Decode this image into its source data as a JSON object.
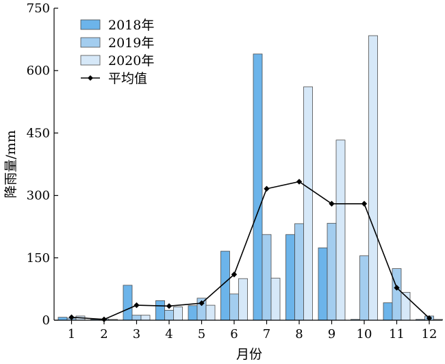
{
  "chart_data": {
    "type": "bar",
    "title": "",
    "xlabel": "月份",
    "ylabel": "降雨量/mm",
    "categories": [
      "1",
      "2",
      "3",
      "4",
      "5",
      "6",
      "7",
      "8",
      "9",
      "10",
      "11",
      "12"
    ],
    "ylim": [
      0,
      750
    ],
    "yticks": [
      "0",
      "150",
      "300",
      "450",
      "600",
      "750"
    ],
    "grid": false,
    "legend_position": "top-left",
    "series": [
      {
        "name": "2018年",
        "type": "bar",
        "color": "#6CB4EA",
        "values": [
          7,
          2,
          84,
          47,
          35,
          166,
          640,
          206,
          174,
          2,
          42,
          2
        ]
      },
      {
        "name": "2019年",
        "type": "bar",
        "color": "#A3CDEF",
        "values": [
          5,
          3,
          12,
          24,
          53,
          63,
          206,
          232,
          233,
          155,
          124,
          10
        ]
      },
      {
        "name": "2020年",
        "type": "bar",
        "color": "#D6E8F8",
        "values": [
          10,
          2,
          12,
          32,
          36,
          100,
          101,
          561,
          433,
          684,
          67,
          2
        ]
      },
      {
        "name": "平均值",
        "type": "line",
        "color": "#000000",
        "values": [
          7,
          2,
          36,
          34,
          41,
          110,
          316,
          333,
          280,
          280,
          78,
          5
        ]
      }
    ]
  }
}
